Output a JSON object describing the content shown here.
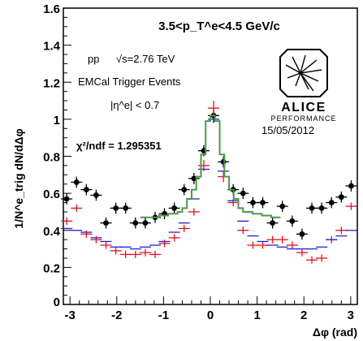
{
  "chart_data": {
    "type": "scatter",
    "title": "3.5<p_T^e<4.5 GeV/c",
    "xlabel": "Δφ (rad)",
    "ylabel": "1/N^e_trig dN/dΔφ",
    "xlim": [
      -3.1416,
      3.1416
    ],
    "ylim": [
      0,
      1.6
    ],
    "x_ticks": [
      -3,
      -2,
      -1,
      0,
      1,
      2,
      3
    ],
    "y_ticks": [
      0.2,
      0.4,
      0.6,
      0.8,
      1,
      1.2,
      1.4,
      1.6
    ],
    "y_tick_labels": [
      "0.2",
      "0.4",
      "0.6",
      "0.8",
      "1",
      "1.2",
      "1.4",
      "1.6"
    ],
    "x_tick_labels": [
      "-3",
      "-2",
      "-1",
      "0",
      "1",
      "2",
      "3"
    ],
    "grid": false,
    "annotations": {
      "system": "pp",
      "energy": "√s=2.76 TeV",
      "trigger": "EMCal Trigger Events",
      "eta_cut": "|η^e| < 0.7",
      "chi2": "χ²/ndf = 1.295351",
      "date": "15/05/2012",
      "logo_text": "ALICE",
      "logo_sub": "PERFORMANCE"
    },
    "series": [
      {
        "kind": "data",
        "color": "#000000",
        "x": [
          -3.07,
          -2.86,
          -2.65,
          -2.44,
          -2.23,
          -2.02,
          -1.81,
          -1.6,
          -1.39,
          -1.18,
          -0.98,
          -0.77,
          -0.56,
          -0.35,
          -0.14,
          0.07,
          0.28,
          0.49,
          0.7,
          0.91,
          1.12,
          1.33,
          1.54,
          1.75,
          1.96,
          2.17,
          2.38,
          2.59,
          2.8,
          3.01
        ],
        "y": [
          0.57,
          0.66,
          0.62,
          0.59,
          0.44,
          0.52,
          0.52,
          0.44,
          0.44,
          0.47,
          0.49,
          0.52,
          0.62,
          0.68,
          0.83,
          1.02,
          0.77,
          0.62,
          0.6,
          0.55,
          0.55,
          0.44,
          0.53,
          0.45,
          0.38,
          0.52,
          0.52,
          0.55,
          0.58,
          0.64
        ],
        "err": [
          0.03,
          0.03,
          0.03,
          0.03,
          0.03,
          0.03,
          0.03,
          0.03,
          0.03,
          0.03,
          0.03,
          0.03,
          0.03,
          0.03,
          0.03,
          0.04,
          0.03,
          0.03,
          0.03,
          0.03,
          0.03,
          0.03,
          0.03,
          0.03,
          0.03,
          0.03,
          0.03,
          0.03,
          0.03,
          0.03
        ]
      },
      {
        "kind": "red",
        "color": "#e8111a",
        "x": [
          -3.07,
          -2.86,
          -2.65,
          -2.44,
          -2.23,
          -2.02,
          -1.81,
          -1.6,
          -1.39,
          -1.18,
          -0.98,
          -0.77,
          -0.56,
          -0.35,
          -0.14,
          0.07,
          0.28,
          0.49,
          0.7,
          0.91,
          1.12,
          1.33,
          1.54,
          1.75,
          1.96,
          2.17,
          2.38,
          2.59,
          2.8,
          3.01
        ],
        "y": [
          0.45,
          0.52,
          0.38,
          0.35,
          0.32,
          0.29,
          0.27,
          0.27,
          0.28,
          0.27,
          0.33,
          0.36,
          0.41,
          0.5,
          0.75,
          1.06,
          0.69,
          0.55,
          0.4,
          0.32,
          0.32,
          0.35,
          0.35,
          0.32,
          0.28,
          0.24,
          0.25,
          0.35,
          0.4,
          0.53
        ],
        "err": [
          0.02,
          0.02,
          0.02,
          0.02,
          0.02,
          0.02,
          0.02,
          0.02,
          0.02,
          0.02,
          0.02,
          0.02,
          0.02,
          0.02,
          0.03,
          0.04,
          0.03,
          0.02,
          0.02,
          0.02,
          0.02,
          0.02,
          0.02,
          0.02,
          0.02,
          0.02,
          0.02,
          0.02,
          0.02,
          0.02
        ]
      },
      {
        "kind": "blue",
        "color": "#2020d8",
        "x": [
          -3.07,
          -2.86,
          -2.65,
          -2.44,
          -2.23,
          -2.02,
          -1.81,
          -1.6,
          -1.39,
          -1.18,
          -0.98,
          -0.77,
          -0.56,
          -0.35,
          -0.14,
          0.07,
          0.28,
          0.49,
          0.7,
          0.91,
          1.12,
          1.33,
          1.54,
          1.75,
          1.96,
          2.17,
          2.38,
          2.59,
          2.8,
          3.01
        ],
        "y": [
          0.41,
          0.4,
          0.39,
          0.36,
          0.34,
          0.31,
          0.31,
          0.3,
          0.31,
          0.32,
          0.34,
          0.39,
          0.44,
          0.57,
          0.73,
          1.0,
          0.72,
          0.56,
          0.45,
          0.37,
          0.34,
          0.32,
          0.31,
          0.3,
          0.3,
          0.3,
          0.31,
          0.35,
          0.37,
          0.4
        ],
        "err": [
          0,
          0,
          0,
          0,
          0,
          0,
          0,
          0,
          0,
          0,
          0,
          0,
          0,
          0,
          0,
          0,
          0,
          0,
          0,
          0,
          0,
          0,
          0,
          0,
          0,
          0,
          0,
          0,
          0,
          0
        ]
      },
      {
        "kind": "fit",
        "color": "#4a9a4a",
        "x": [
          -1.5,
          -1.3,
          -1.1,
          -0.9,
          -0.7,
          -0.6,
          -0.5,
          -0.4,
          -0.3,
          -0.2,
          -0.1,
          0.0,
          0.1,
          0.2,
          0.3,
          0.4,
          0.5,
          0.6,
          0.7,
          0.9,
          1.1,
          1.3,
          1.5
        ],
        "y": [
          0.47,
          0.47,
          0.48,
          0.49,
          0.5,
          0.52,
          0.57,
          0.62,
          0.69,
          0.81,
          0.99,
          1.02,
          0.99,
          0.81,
          0.69,
          0.62,
          0.57,
          0.52,
          0.5,
          0.49,
          0.48,
          0.47,
          0.47
        ]
      }
    ]
  }
}
